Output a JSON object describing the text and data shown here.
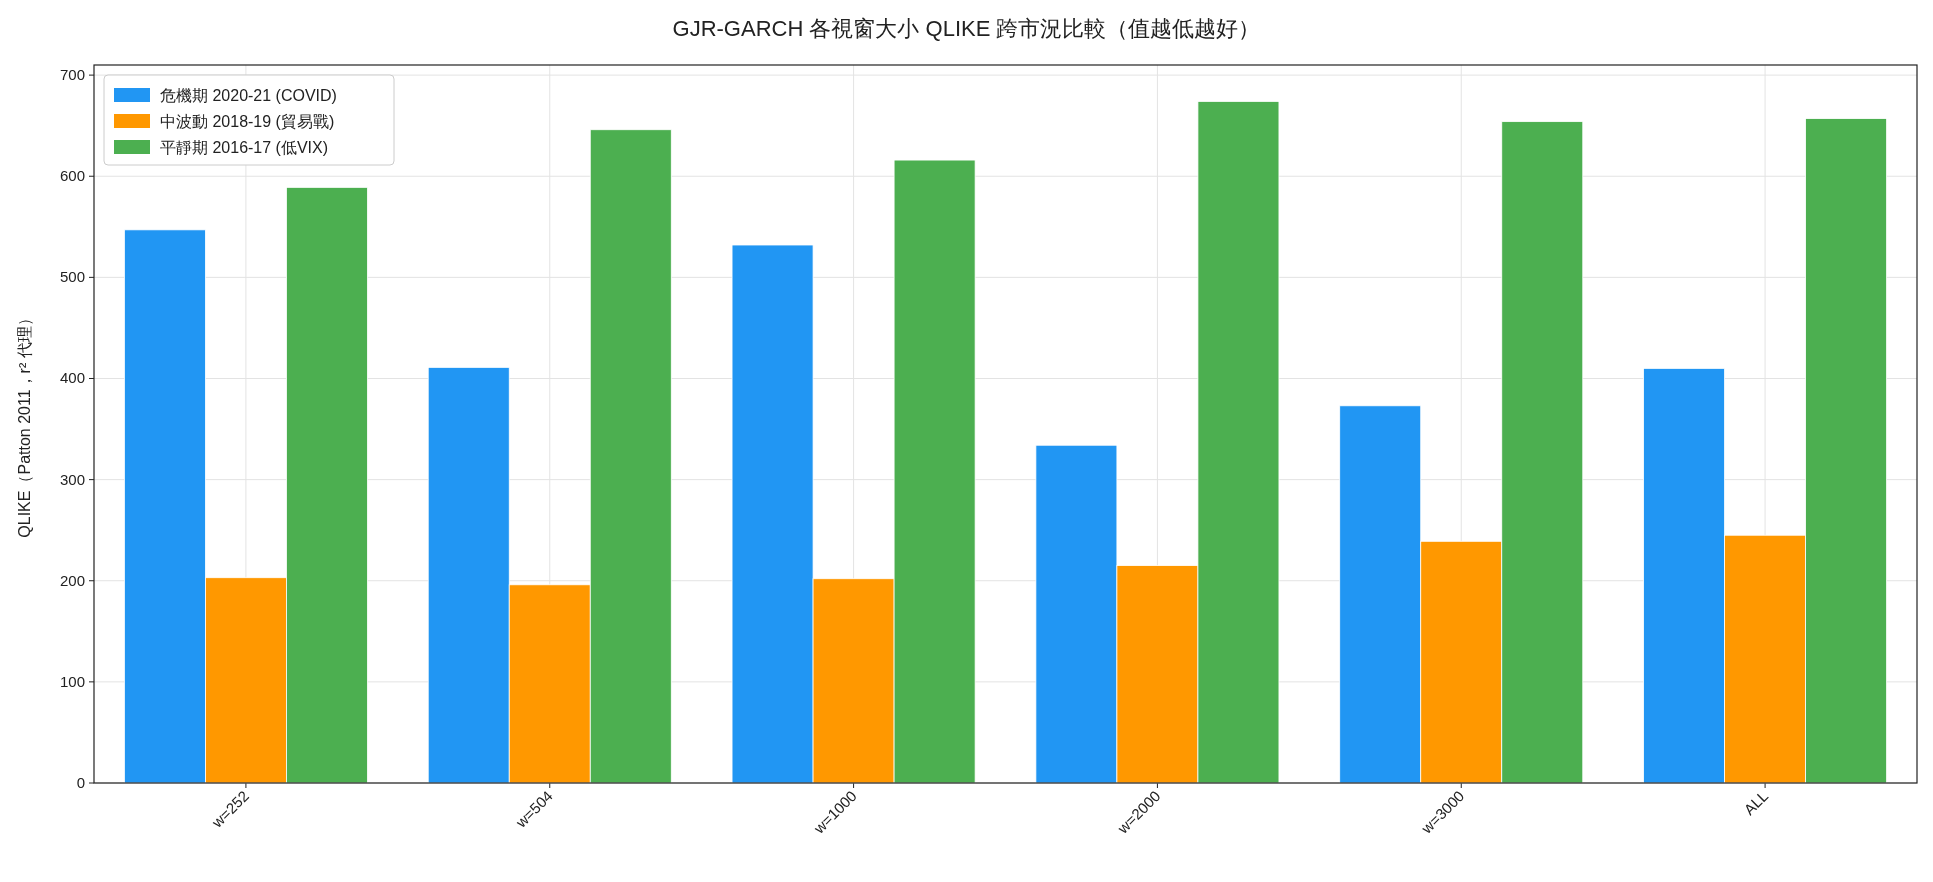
{
  "chart_data": {
    "type": "bar",
    "title": "GJR-GARCH 各視窗大小 QLIKE 跨市況比較（值越低越好）",
    "ylabel": "QLIKE（Patton 2011，r² 代理）",
    "categories": [
      "w=252",
      "w=504",
      "w=1000",
      "w=2000",
      "w=3000",
      "ALL"
    ],
    "series": [
      {
        "name": "危機期 2020-21 (COVID)",
        "color": "#2196f3",
        "values": [
          547,
          411,
          532,
          334,
          373,
          410
        ]
      },
      {
        "name": "中波動 2018-19 (貿易戰)",
        "color": "#ff9800",
        "values": [
          203,
          196,
          202,
          215,
          239,
          245
        ]
      },
      {
        "name": "平靜期 2016-17 (低VIX)",
        "color": "#4caf50",
        "values": [
          589,
          646,
          616,
          674,
          654,
          657
        ]
      }
    ],
    "ylim": [
      0,
      710
    ],
    "yticks": [
      0,
      100,
      200,
      300,
      400,
      500,
      600,
      700
    ],
    "grid": true,
    "legend": "top left"
  }
}
